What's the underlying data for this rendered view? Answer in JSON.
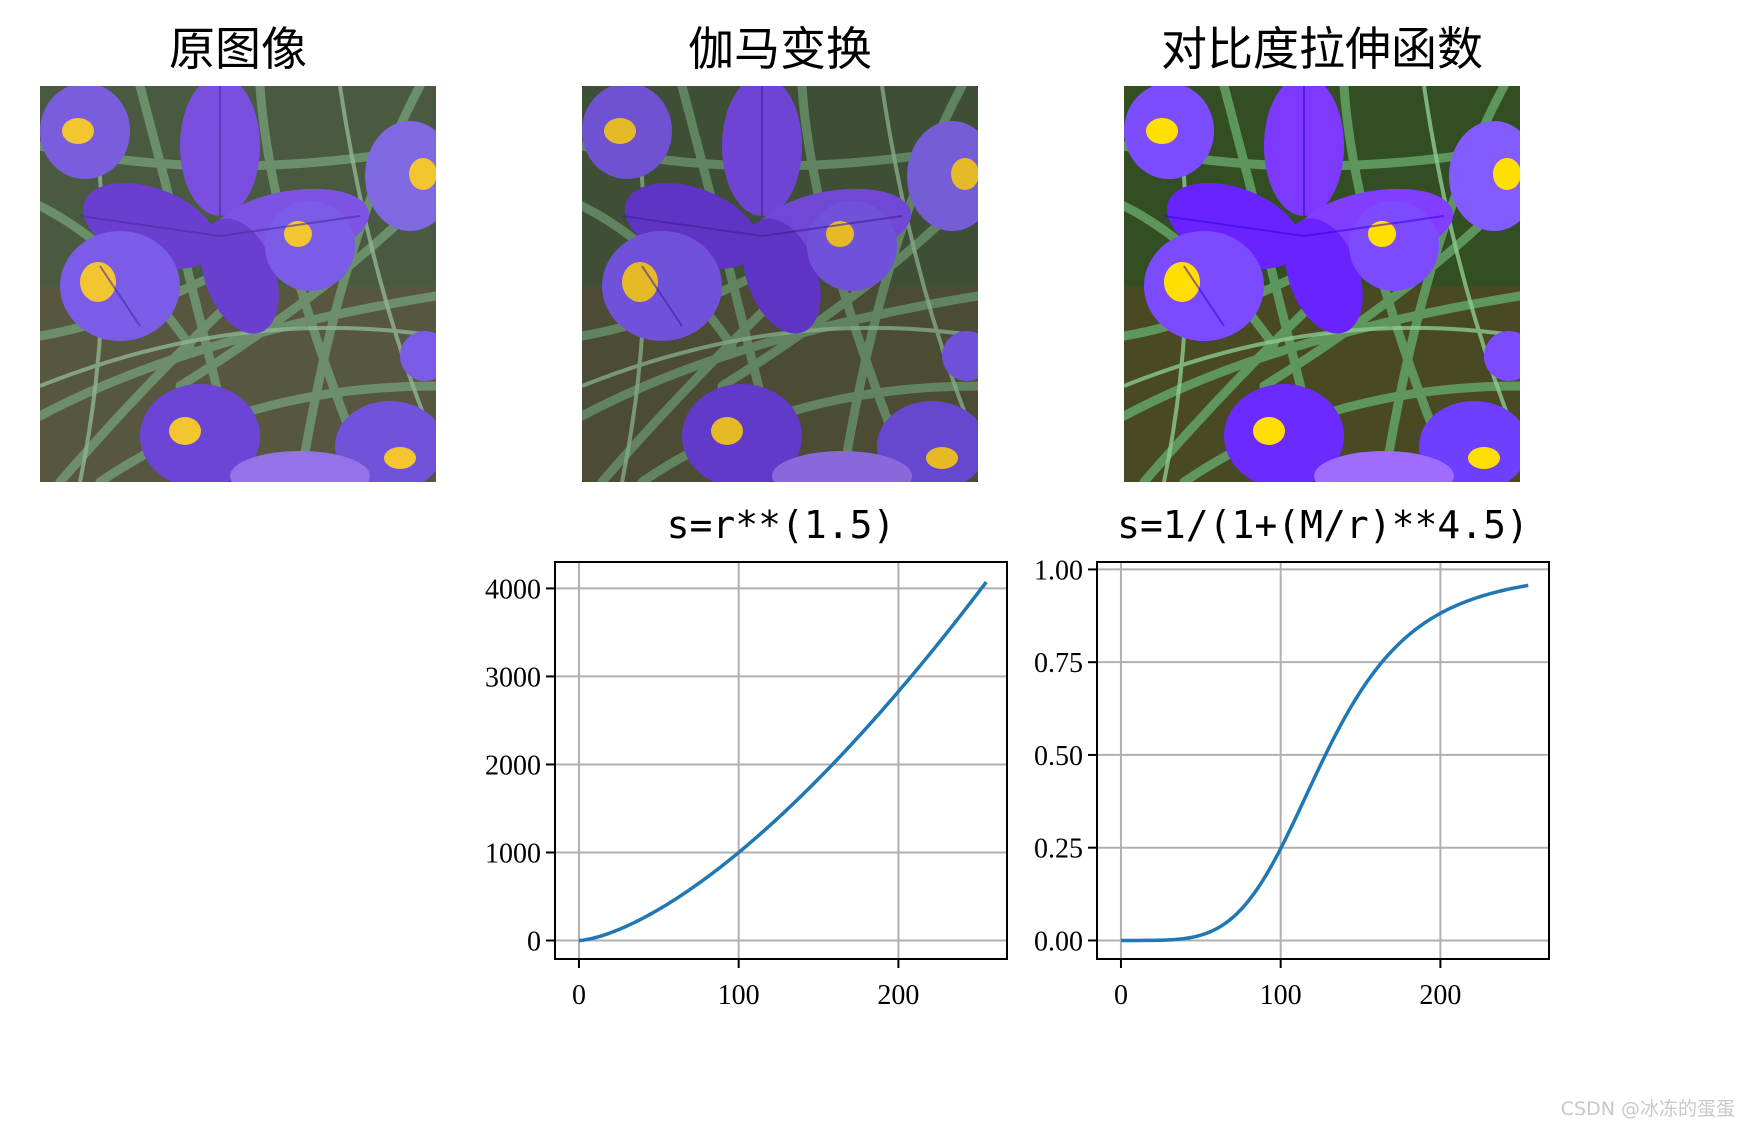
{
  "panels": [
    {
      "title": "原图像",
      "effect": "original"
    },
    {
      "title": "伽马变换",
      "effect": "gamma"
    },
    {
      "title": "对比度拉伸函数",
      "effect": "stretch"
    }
  ],
  "watermark": "CSDN @冰冻的蛋蛋",
  "colors": {
    "line": "#1f77b4",
    "grid": "#b0b0b0"
  },
  "chart_data": [
    {
      "type": "line",
      "title": "s=r**(1.5)",
      "function": "r**1.5",
      "xlim": [
        -15,
        268
      ],
      "ylim": [
        -210,
        4300
      ],
      "xticks": [
        0,
        100,
        200
      ],
      "yticks": [
        0,
        1000,
        2000,
        3000,
        4000
      ],
      "ytick_labels": [
        "0",
        "1000",
        "2000",
        "3000",
        "4000"
      ],
      "x": [
        0,
        25,
        50,
        75,
        100,
        125,
        150,
        175,
        200,
        225,
        255
      ],
      "y": [
        0,
        125,
        354,
        650,
        1000,
        1398,
        1837,
        2315,
        2828,
        3375,
        4072
      ],
      "grid": true
    },
    {
      "type": "line",
      "title": "s=1/(1+(M/r)**4.5)",
      "function": "1/(1+(M/r)**4.5), M≈128",
      "xlim": [
        -15,
        268
      ],
      "ylim": [
        -0.05,
        1.02
      ],
      "xticks": [
        0,
        100,
        200
      ],
      "yticks": [
        0.0,
        0.25,
        0.5,
        0.75,
        1.0
      ],
      "ytick_labels": [
        "0.00",
        "0.25",
        "0.50",
        "0.75",
        "1.00"
      ],
      "x": [
        0,
        25,
        50,
        75,
        100,
        125,
        150,
        175,
        200,
        225,
        255
      ],
      "y": [
        0.0,
        0.0006,
        0.0143,
        0.0884,
        0.2462,
        0.4735,
        0.6721,
        0.8085,
        0.8904,
        0.9381,
        0.9572
      ],
      "grid": true
    }
  ]
}
